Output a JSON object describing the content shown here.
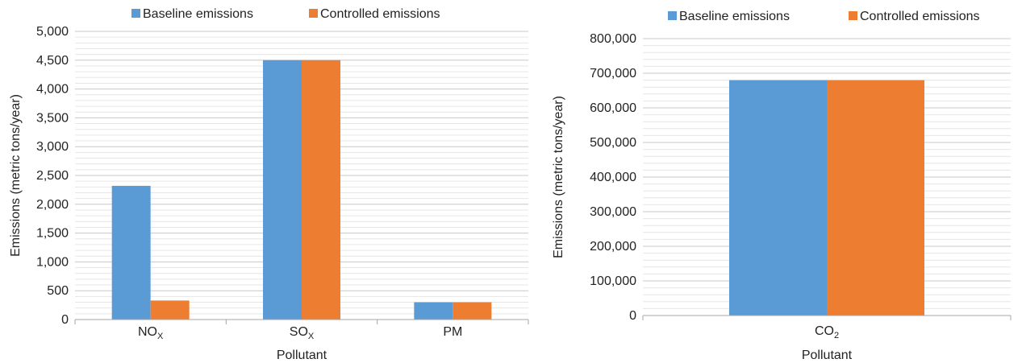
{
  "chart_data": [
    {
      "type": "bar",
      "categories": [
        {
          "base": "NO",
          "sub": "X"
        },
        {
          "base": "SO",
          "sub": "X"
        },
        {
          "base": "PM",
          "sub": ""
        }
      ],
      "series": [
        {
          "name": "Baseline emissions",
          "color": "#5b9bd5",
          "values": [
            2320,
            4500,
            300
          ]
        },
        {
          "name": "Controlled emissions",
          "color": "#ed7d31",
          "values": [
            330,
            4500,
            300
          ]
        }
      ],
      "xlabel": "Pollutant",
      "ylabel": "Emissions (metric tons/year)",
      "ylim": [
        0,
        5000
      ],
      "major_step": 500,
      "minor_step": 100,
      "y_ticks": [
        "0",
        "500",
        "1,000",
        "1,500",
        "2,000",
        "2,500",
        "3,000",
        "3,500",
        "4,000",
        "4,500",
        "5,000"
      ],
      "grid": true,
      "legend_position": "top"
    },
    {
      "type": "bar",
      "categories": [
        {
          "base": "CO",
          "sub": "2"
        }
      ],
      "series": [
        {
          "name": "Baseline emissions",
          "color": "#5b9bd5",
          "values": [
            680000
          ]
        },
        {
          "name": "Controlled emissions",
          "color": "#ed7d31",
          "values": [
            680000
          ]
        }
      ],
      "xlabel": "Pollutant",
      "ylabel": "Emissions (metric tons/year)",
      "ylim": [
        0,
        800000
      ],
      "major_step": 100000,
      "minor_step": 20000,
      "y_ticks": [
        "0",
        "100,000",
        "200,000",
        "300,000",
        "400,000",
        "500,000",
        "600,000",
        "700,000",
        "800,000"
      ],
      "grid": true,
      "legend_position": "top"
    }
  ]
}
